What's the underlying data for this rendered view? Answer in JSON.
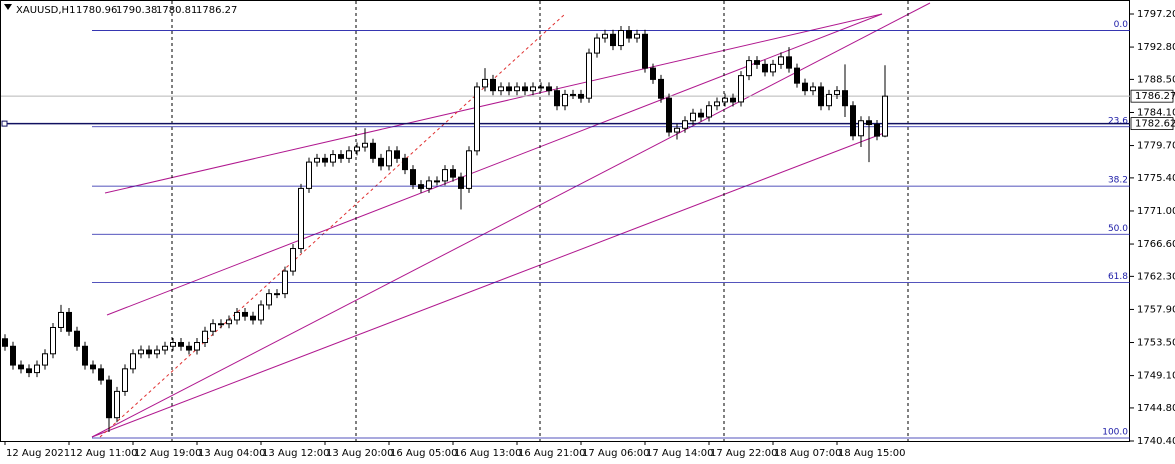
{
  "chart_data": {
    "type": "candlestick",
    "title": "XAUUSD,H1",
    "ylim": [
      1740.4,
      1797.2
    ],
    "yticks": [
      {
        "value": 1797.2,
        "label": "1797.20"
      },
      {
        "value": 1792.8,
        "label": "1792.80"
      },
      {
        "value": 1788.5,
        "label": "1788.50"
      },
      {
        "value": 1784.1,
        "label": "1784.10"
      },
      {
        "value": 1779.7,
        "label": "1779.70"
      },
      {
        "value": 1775.4,
        "label": "1775.40"
      },
      {
        "value": 1771.0,
        "label": "1771.00"
      },
      {
        "value": 1766.6,
        "label": "1766.60"
      },
      {
        "value": 1762.3,
        "label": "1762.30"
      },
      {
        "value": 1757.9,
        "label": "1757.90"
      },
      {
        "value": 1753.5,
        "label": "1753.50"
      },
      {
        "value": 1749.1,
        "label": "1749.10"
      },
      {
        "value": 1744.8,
        "label": "1744.80"
      },
      {
        "value": 1740.4,
        "label": "1740.40"
      }
    ],
    "x_labels": [
      {
        "index": 0,
        "label": "12 Aug 2021"
      },
      {
        "index": 8,
        "label": "12 Aug 11:00"
      },
      {
        "index": 16,
        "label": "12 Aug 19:00"
      },
      {
        "index": 24,
        "label": "13 Aug 04:00"
      },
      {
        "index": 32,
        "label": "13 Aug 12:00"
      },
      {
        "index": 40,
        "label": "13 Aug 20:00"
      },
      {
        "index": 48,
        "label": "16 Aug 05:00"
      },
      {
        "index": 56,
        "label": "16 Aug 13:00"
      },
      {
        "index": 64,
        "label": "16 Aug 21:00"
      },
      {
        "index": 72,
        "label": "17 Aug 06:00"
      },
      {
        "index": 80,
        "label": "17 Aug 14:00"
      },
      {
        "index": 88,
        "label": "17 Aug 22:00"
      },
      {
        "index": 96,
        "label": "18 Aug 07:00"
      },
      {
        "index": 104,
        "label": "18 Aug 15:00"
      }
    ],
    "open": [
      1754.0,
      1753.0,
      1750.5,
      1750.0,
      1749.5,
      1750.5,
      1752.0,
      1755.5,
      1757.5,
      1755.0,
      1753.0,
      1750.5,
      1750.0,
      1748.5,
      1743.5,
      1747.0,
      1750.0,
      1752.0,
      1752.5,
      1752.0,
      1752.5,
      1753.0,
      1753.5,
      1753.0,
      1752.5,
      1753.5,
      1755.0,
      1756.0,
      1756.0,
      1756.5,
      1757.5,
      1757.0,
      1756.5,
      1758.5,
      1760.0,
      1760.0,
      1763.0,
      1766.0,
      1774.0,
      1777.5,
      1778.0,
      1777.5,
      1778.5,
      1778.0,
      1779.0,
      1779.5,
      1780.0,
      1778.0,
      1777.0,
      1779.0,
      1778.0,
      1776.5,
      1774.5,
      1774.0,
      1775.0,
      1775.0,
      1776.5,
      1775.5,
      1774.0,
      1779.0,
      1787.5,
      1788.5,
      1787.0,
      1787.5,
      1787.0,
      1787.5,
      1787.0,
      1787.5,
      1787.5,
      1787.0,
      1785.0,
      1786.5,
      1786.5,
      1786.0,
      1792.0,
      1794.0,
      1794.5,
      1793.0,
      1795.0,
      1794.0,
      1794.5,
      1790.0,
      1788.5,
      1786.0,
      1781.5,
      1782.0,
      1783.0,
      1784.0,
      1783.5,
      1785.0,
      1785.5,
      1786.0,
      1785.5,
      1789.0,
      1791.0,
      1790.5,
      1789.5,
      1790.5,
      1791.5,
      1790.0,
      1788.0,
      1787.0,
      1787.5,
      1785.0,
      1786.5,
      1787.0,
      1785.0,
      1781.0,
      1783.0,
      1782.5,
      1780.96
    ],
    "high": [
      1754.6,
      1753.6,
      1751.1,
      1750.6,
      1751.1,
      1752.6,
      1756.1,
      1758.5,
      1758.1,
      1755.6,
      1753.6,
      1751.1,
      1750.6,
      1749.1,
      1747.6,
      1750.6,
      1752.6,
      1753.1,
      1753.1,
      1753.1,
      1753.6,
      1754.1,
      1754.1,
      1753.6,
      1754.1,
      1755.6,
      1756.6,
      1756.6,
      1757.1,
      1758.1,
      1758.1,
      1757.6,
      1759.1,
      1760.6,
      1760.6,
      1763.6,
      1766.6,
      1774.6,
      1778.1,
      1778.6,
      1778.6,
      1779.1,
      1779.1,
      1779.6,
      1780.1,
      1782.0,
      1780.6,
      1778.6,
      1779.6,
      1779.6,
      1778.6,
      1777.1,
      1775.1,
      1775.6,
      1775.6,
      1777.1,
      1777.1,
      1776.1,
      1779.6,
      1788.1,
      1790.0,
      1789.1,
      1788.1,
      1788.1,
      1788.1,
      1788.1,
      1788.1,
      1788.1,
      1788.1,
      1787.6,
      1787.1,
      1787.1,
      1787.1,
      1792.6,
      1794.6,
      1795.1,
      1795.1,
      1795.6,
      1795.6,
      1795.1,
      1795.1,
      1790.6,
      1789.1,
      1786.6,
      1782.6,
      1783.6,
      1784.6,
      1784.6,
      1785.6,
      1786.1,
      1786.6,
      1786.6,
      1789.6,
      1791.6,
      1791.6,
      1791.1,
      1791.1,
      1792.1,
      1792.8,
      1790.6,
      1788.6,
      1788.1,
      1788.1,
      1787.1,
      1787.6,
      1790.5,
      1785.6,
      1783.6,
      1783.6,
      1783.1,
      1790.38
    ],
    "low": [
      1752.4,
      1749.9,
      1749.4,
      1748.9,
      1748.9,
      1749.9,
      1751.4,
      1754.9,
      1754.4,
      1752.4,
      1749.9,
      1749.4,
      1747.9,
      1741.6,
      1742.9,
      1746.4,
      1749.4,
      1751.4,
      1751.4,
      1751.4,
      1751.9,
      1752.4,
      1752.4,
      1751.9,
      1751.9,
      1752.9,
      1754.4,
      1755.4,
      1755.4,
      1755.9,
      1756.4,
      1755.9,
      1755.9,
      1757.9,
      1759.4,
      1759.4,
      1762.4,
      1765.4,
      1773.4,
      1776.9,
      1776.9,
      1776.9,
      1777.4,
      1777.4,
      1778.4,
      1778.9,
      1777.4,
      1776.4,
      1776.4,
      1777.4,
      1775.9,
      1773.9,
      1773.4,
      1773.4,
      1774.4,
      1774.4,
      1774.9,
      1771.2,
      1773.4,
      1778.4,
      1786.9,
      1786.4,
      1786.4,
      1786.4,
      1786.4,
      1786.4,
      1786.4,
      1786.9,
      1786.4,
      1784.4,
      1784.4,
      1785.9,
      1785.4,
      1785.4,
      1791.4,
      1793.4,
      1792.4,
      1792.4,
      1793.4,
      1793.4,
      1789.4,
      1787.9,
      1785.4,
      1780.9,
      1780.5,
      1781.4,
      1782.4,
      1782.9,
      1782.9,
      1784.4,
      1784.9,
      1784.9,
      1784.9,
      1788.4,
      1789.9,
      1788.9,
      1788.9,
      1789.9,
      1789.4,
      1787.4,
      1786.4,
      1786.4,
      1784.4,
      1784.4,
      1785.9,
      1783.5,
      1780.4,
      1779.5,
      1777.5,
      1780.4,
      1780.81
    ],
    "close": [
      1753.0,
      1750.5,
      1750.0,
      1749.5,
      1750.5,
      1752.0,
      1755.5,
      1757.5,
      1755.0,
      1753.0,
      1750.5,
      1750.0,
      1748.5,
      1743.5,
      1747.0,
      1750.0,
      1752.0,
      1752.5,
      1752.0,
      1752.5,
      1753.0,
      1753.5,
      1753.0,
      1752.5,
      1753.5,
      1755.0,
      1756.0,
      1756.0,
      1756.5,
      1757.5,
      1757.0,
      1756.5,
      1758.5,
      1760.0,
      1760.0,
      1763.0,
      1766.0,
      1774.0,
      1777.5,
      1778.0,
      1777.5,
      1778.5,
      1778.0,
      1779.0,
      1779.5,
      1780.0,
      1778.0,
      1777.0,
      1779.0,
      1778.0,
      1776.5,
      1774.5,
      1774.0,
      1775.0,
      1775.0,
      1776.5,
      1775.5,
      1774.0,
      1779.0,
      1787.5,
      1788.5,
      1787.0,
      1787.5,
      1787.0,
      1787.5,
      1787.0,
      1787.5,
      1787.5,
      1787.0,
      1785.0,
      1786.5,
      1786.5,
      1786.0,
      1792.0,
      1794.0,
      1794.5,
      1793.0,
      1795.0,
      1794.0,
      1794.5,
      1790.0,
      1788.5,
      1786.0,
      1781.5,
      1782.0,
      1783.0,
      1784.0,
      1783.5,
      1785.0,
      1785.5,
      1786.0,
      1785.5,
      1789.0,
      1791.0,
      1790.5,
      1789.5,
      1790.5,
      1791.5,
      1790.0,
      1788.0,
      1787.0,
      1787.5,
      1785.0,
      1786.5,
      1787.0,
      1785.0,
      1781.0,
      1783.0,
      1782.5,
      1780.96,
      1786.27
    ],
    "hline": 1782.62,
    "fib_levels": [
      {
        "label": "0.0",
        "price": 1795.0
      },
      {
        "label": "23.6",
        "price": 1782.2
      },
      {
        "label": "38.2",
        "price": 1774.3
      },
      {
        "label": "50.0",
        "price": 1767.9
      },
      {
        "label": "61.8",
        "price": 1761.5
      },
      {
        "label": "100.0",
        "price": 1740.8
      }
    ]
  }
}
